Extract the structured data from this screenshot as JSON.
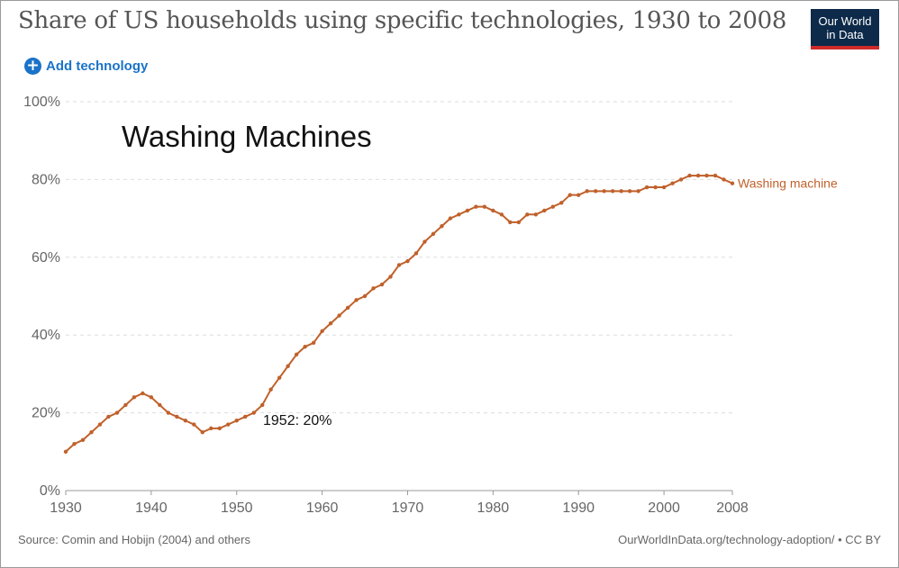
{
  "header": {
    "title": "Share of US households using specific technologies, 1930 to 2008",
    "logo_line1": "Our World",
    "logo_line2": "in Data",
    "add_button_label": "Add technology"
  },
  "footer": {
    "source": "Source: Comin and Hobijn (2004) and others",
    "license": "OurWorldInData.org/technology-adoption/ • CC BY"
  },
  "colors": {
    "series": "#c0612b",
    "accent": "#1a73c8",
    "logo_bg": "#0d2a4a",
    "logo_underline": "#cf2a2a"
  },
  "chart_data": {
    "type": "line",
    "title": "Washing Machines",
    "xlabel": "",
    "ylabel": "",
    "xlim": [
      1930,
      2008
    ],
    "ylim": [
      0,
      100
    ],
    "x_ticks": [
      1930,
      1940,
      1950,
      1960,
      1970,
      1980,
      1990,
      2000,
      2008
    ],
    "y_ticks": [
      0,
      20,
      40,
      60,
      80,
      100
    ],
    "y_tick_labels": [
      "0%",
      "20%",
      "40%",
      "60%",
      "80%",
      "100%"
    ],
    "grid": true,
    "annotation": "1952: 20%",
    "series": [
      {
        "name": "Washing machine",
        "x": [
          1930,
          1931,
          1932,
          1933,
          1934,
          1935,
          1936,
          1937,
          1938,
          1939,
          1940,
          1941,
          1942,
          1943,
          1944,
          1945,
          1946,
          1947,
          1948,
          1949,
          1950,
          1951,
          1952,
          1953,
          1954,
          1955,
          1956,
          1957,
          1958,
          1959,
          1960,
          1961,
          1962,
          1963,
          1964,
          1965,
          1966,
          1967,
          1968,
          1969,
          1970,
          1971,
          1972,
          1973,
          1974,
          1975,
          1976,
          1977,
          1978,
          1979,
          1980,
          1981,
          1982,
          1983,
          1984,
          1985,
          1986,
          1987,
          1988,
          1989,
          1990,
          1991,
          1992,
          1993,
          1994,
          1995,
          1996,
          1997,
          1998,
          1999,
          2000,
          2001,
          2002,
          2003,
          2004,
          2005,
          2006,
          2007,
          2008
        ],
        "y": [
          10,
          12,
          13,
          15,
          17,
          19,
          20,
          22,
          24,
          25,
          24,
          22,
          20,
          19,
          18,
          17,
          15,
          16,
          16,
          17,
          18,
          19,
          20,
          22,
          26,
          29,
          32,
          35,
          37,
          38,
          41,
          43,
          45,
          47,
          49,
          50,
          52,
          53,
          55,
          58,
          59,
          61,
          64,
          66,
          68,
          70,
          71,
          72,
          73,
          73,
          72,
          71,
          69,
          69,
          71,
          71,
          72,
          73,
          74,
          76,
          76,
          77,
          77,
          77,
          77,
          77,
          77,
          77,
          78,
          78,
          78,
          79,
          80,
          81,
          81,
          81,
          81,
          80,
          79
        ]
      }
    ]
  }
}
